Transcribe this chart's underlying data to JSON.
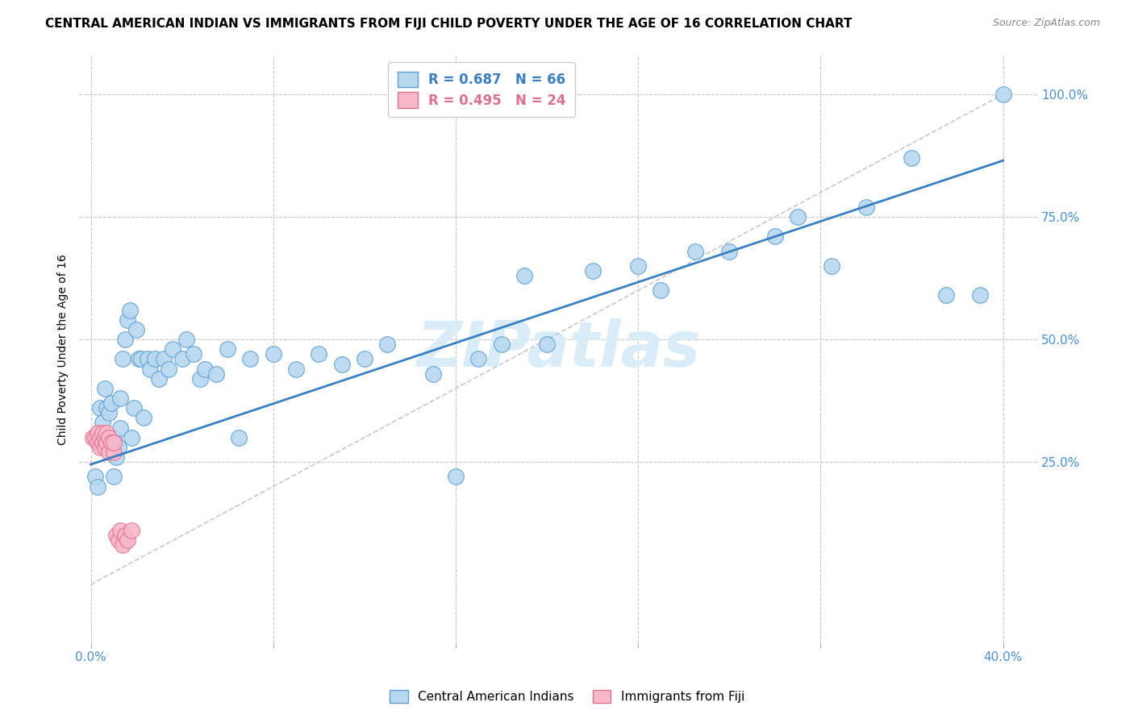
{
  "title": "CENTRAL AMERICAN INDIAN VS IMMIGRANTS FROM FIJI CHILD POVERTY UNDER THE AGE OF 16 CORRELATION CHART",
  "source": "Source: ZipAtlas.com",
  "ylabel": "Child Poverty Under the Age of 16",
  "ytick_labels": [
    "25.0%",
    "50.0%",
    "75.0%",
    "100.0%"
  ],
  "ytick_values": [
    0.25,
    0.5,
    0.75,
    1.0
  ],
  "xtick_labels": [
    "0.0%",
    "40.0%"
  ],
  "xtick_values": [
    0.0,
    0.4
  ],
  "xlim": [
    -0.005,
    0.415
  ],
  "ylim": [
    -0.12,
    1.08
  ],
  "watermark": "ZIPatlas",
  "legend_r1": "R = 0.687",
  "legend_n1": "N = 66",
  "legend_r2": "R = 0.495",
  "legend_n2": "N = 24",
  "series1_color": "#b8d8f0",
  "series1_edge": "#5a9fd4",
  "series2_color": "#f8b8cc",
  "series2_edge": "#e07090",
  "line1_color": "#3a7fc1",
  "line2_color": "#c8c8c8",
  "grid_color": "#c8c8c8",
  "background_color": "#ffffff",
  "title_fontsize": 11,
  "tick_fontsize": 11,
  "tick_color": "#4a90d9",
  "watermark_color": "#d8edf8",
  "watermark_fontsize": 56,
  "blue_x": [
    0.002,
    0.003,
    0.004,
    0.005,
    0.006,
    0.007,
    0.008,
    0.008,
    0.009,
    0.01,
    0.01,
    0.011,
    0.012,
    0.013,
    0.013,
    0.014,
    0.015,
    0.016,
    0.017,
    0.018,
    0.019,
    0.02,
    0.021,
    0.022,
    0.023,
    0.025,
    0.026,
    0.028,
    0.03,
    0.032,
    0.034,
    0.036,
    0.04,
    0.042,
    0.045,
    0.048,
    0.05,
    0.055,
    0.06,
    0.065,
    0.07,
    0.08,
    0.09,
    0.1,
    0.11,
    0.12,
    0.13,
    0.15,
    0.16,
    0.17,
    0.18,
    0.19,
    0.2,
    0.22,
    0.24,
    0.25,
    0.265,
    0.28,
    0.3,
    0.31,
    0.325,
    0.34,
    0.36,
    0.375,
    0.39,
    0.4
  ],
  "blue_y": [
    0.22,
    0.2,
    0.36,
    0.33,
    0.4,
    0.36,
    0.35,
    0.29,
    0.37,
    0.22,
    0.3,
    0.26,
    0.28,
    0.32,
    0.38,
    0.46,
    0.5,
    0.54,
    0.56,
    0.3,
    0.36,
    0.52,
    0.46,
    0.46,
    0.34,
    0.46,
    0.44,
    0.46,
    0.42,
    0.46,
    0.44,
    0.48,
    0.46,
    0.5,
    0.47,
    0.42,
    0.44,
    0.43,
    0.48,
    0.3,
    0.46,
    0.47,
    0.44,
    0.47,
    0.45,
    0.46,
    0.49,
    0.43,
    0.22,
    0.46,
    0.49,
    0.63,
    0.49,
    0.64,
    0.65,
    0.6,
    0.68,
    0.68,
    0.71,
    0.75,
    0.65,
    0.77,
    0.87,
    0.59,
    0.59,
    1.0
  ],
  "pink_x": [
    0.001,
    0.002,
    0.003,
    0.003,
    0.004,
    0.004,
    0.005,
    0.005,
    0.006,
    0.006,
    0.007,
    0.007,
    0.008,
    0.008,
    0.009,
    0.01,
    0.01,
    0.011,
    0.012,
    0.013,
    0.014,
    0.015,
    0.016,
    0.018
  ],
  "pink_y": [
    0.3,
    0.3,
    0.29,
    0.31,
    0.28,
    0.3,
    0.29,
    0.31,
    0.28,
    0.3,
    0.29,
    0.31,
    0.27,
    0.3,
    0.29,
    0.27,
    0.29,
    0.1,
    0.09,
    0.11,
    0.08,
    0.1,
    0.09,
    0.11
  ],
  "line1_x0": 0.0,
  "line1_y0": 0.245,
  "line1_x1": 0.4,
  "line1_y1": 0.865,
  "line2_x0": 0.0,
  "line2_y0": 0.0,
  "line2_x1": 0.4,
  "line2_y1": 1.0
}
